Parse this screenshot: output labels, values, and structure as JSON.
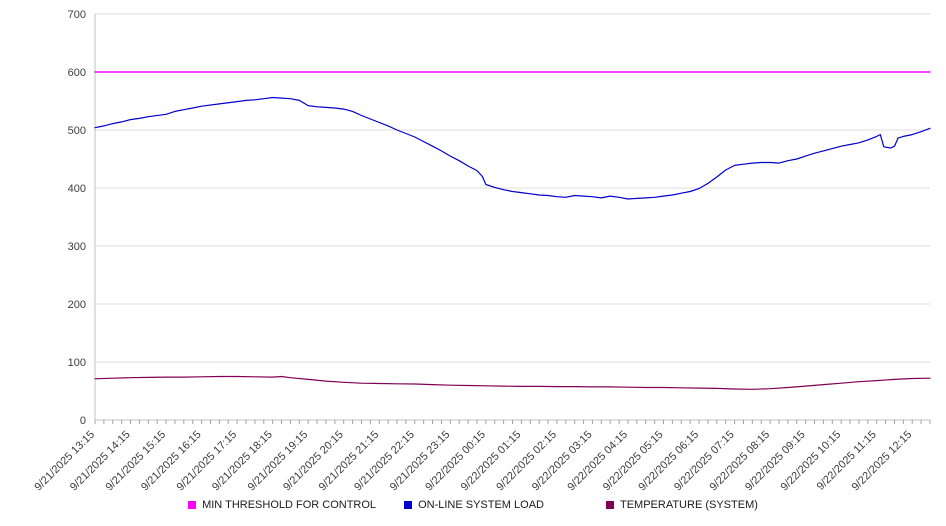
{
  "chart_data": {
    "type": "line",
    "title": "",
    "xlabel": "",
    "ylabel": "",
    "grid": true,
    "legend_position": "bottom",
    "x_axis": {
      "domain": [
        0,
        23.5
      ],
      "minor_tick_interval_hours": 0.25,
      "labels": [
        "9/21/2025 13:15",
        "9/21/2025 14:15",
        "9/21/2025 15:15",
        "9/21/2025 16:15",
        "9/21/2025 17:15",
        "9/21/2025 18:15",
        "9/21/2025 19:15",
        "9/21/2025 20:15",
        "9/21/2025 21:15",
        "9/21/2025 22:15",
        "9/21/2025 23:15",
        "9/22/2025 00:15",
        "9/22/2025 01:15",
        "9/22/2025 02:15",
        "9/22/2025 03:15",
        "9/22/2025 04:15",
        "9/22/2025 05:15",
        "9/22/2025 06:15",
        "9/22/2025 07:15",
        "9/22/2025 08:15",
        "9/22/2025 09:15",
        "9/22/2025 10:15",
        "9/22/2025 11:15",
        "9/22/2025 12:15"
      ]
    },
    "y_axis": {
      "min": 0,
      "max": 700,
      "tick_step": 100,
      "ticks": [
        0,
        100,
        200,
        300,
        400,
        500,
        600,
        700
      ]
    },
    "series": [
      {
        "name": "MIN THRESHOLD FOR CONTROL",
        "color": "#ff00ff",
        "width": 1.4,
        "points": [
          [
            0,
            600
          ],
          [
            23.5,
            600
          ]
        ]
      },
      {
        "name": "ON-LINE SYSTEM LOAD",
        "color": "#0000cc",
        "width": 1.2,
        "points": [
          [
            0,
            504
          ],
          [
            0.25,
            507
          ],
          [
            0.5,
            511
          ],
          [
            0.75,
            514
          ],
          [
            1,
            518
          ],
          [
            1.25,
            520
          ],
          [
            1.5,
            523
          ],
          [
            2,
            527
          ],
          [
            2.25,
            532
          ],
          [
            2.5,
            535
          ],
          [
            2.75,
            538
          ],
          [
            3,
            541
          ],
          [
            3.5,
            545
          ],
          [
            4,
            549
          ],
          [
            4.25,
            551
          ],
          [
            4.5,
            552
          ],
          [
            4.75,
            554
          ],
          [
            5,
            556
          ],
          [
            5.25,
            555
          ],
          [
            5.5,
            554
          ],
          [
            5.75,
            551
          ],
          [
            6,
            542
          ],
          [
            6.25,
            540
          ],
          [
            6.5,
            539
          ],
          [
            6.75,
            538
          ],
          [
            7,
            536
          ],
          [
            7.25,
            532
          ],
          [
            7.5,
            525
          ],
          [
            7.75,
            519
          ],
          [
            8,
            513
          ],
          [
            8.25,
            507
          ],
          [
            8.5,
            500
          ],
          [
            8.75,
            494
          ],
          [
            9,
            488
          ],
          [
            9.25,
            480
          ],
          [
            9.5,
            472
          ],
          [
            9.75,
            464
          ],
          [
            10,
            455
          ],
          [
            10.25,
            447
          ],
          [
            10.5,
            438
          ],
          [
            10.75,
            430
          ],
          [
            10.9,
            420
          ],
          [
            11,
            406
          ],
          [
            11.25,
            401
          ],
          [
            11.5,
            397
          ],
          [
            11.75,
            394
          ],
          [
            12,
            392
          ],
          [
            12.25,
            390
          ],
          [
            12.5,
            388
          ],
          [
            12.75,
            387
          ],
          [
            13,
            385
          ],
          [
            13.25,
            384
          ],
          [
            13.5,
            387
          ],
          [
            13.75,
            386
          ],
          [
            14,
            385
          ],
          [
            14.25,
            383
          ],
          [
            14.5,
            386
          ],
          [
            14.75,
            384
          ],
          [
            15,
            381
          ],
          [
            15.25,
            382
          ],
          [
            15.5,
            383
          ],
          [
            15.75,
            384
          ],
          [
            16,
            386
          ],
          [
            16.25,
            388
          ],
          [
            16.5,
            391
          ],
          [
            16.75,
            394
          ],
          [
            17,
            399
          ],
          [
            17.25,
            408
          ],
          [
            17.5,
            419
          ],
          [
            17.75,
            431
          ],
          [
            18,
            439
          ],
          [
            18.25,
            441
          ],
          [
            18.5,
            443
          ],
          [
            18.75,
            444
          ],
          [
            19,
            444
          ],
          [
            19.25,
            443
          ],
          [
            19.5,
            447
          ],
          [
            19.75,
            450
          ],
          [
            20,
            455
          ],
          [
            20.25,
            460
          ],
          [
            20.5,
            464
          ],
          [
            20.75,
            468
          ],
          [
            21,
            472
          ],
          [
            21.25,
            475
          ],
          [
            21.5,
            478
          ],
          [
            21.75,
            483
          ],
          [
            22,
            489
          ],
          [
            22.1,
            492
          ],
          [
            22.2,
            471
          ],
          [
            22.4,
            469
          ],
          [
            22.5,
            472
          ],
          [
            22.6,
            486
          ],
          [
            22.75,
            489
          ],
          [
            23,
            492
          ],
          [
            23.25,
            497
          ],
          [
            23.5,
            503
          ]
        ]
      },
      {
        "name": "TEMPERATURE (SYSTEM)",
        "color": "#800055",
        "width": 1.2,
        "points": [
          [
            0,
            71
          ],
          [
            0.5,
            72
          ],
          [
            1,
            73
          ],
          [
            1.5,
            73.5
          ],
          [
            2,
            74
          ],
          [
            2.5,
            74
          ],
          [
            3,
            74.5
          ],
          [
            3.5,
            75
          ],
          [
            4,
            75
          ],
          [
            4.5,
            74.5
          ],
          [
            5,
            74
          ],
          [
            5.25,
            75
          ],
          [
            5.5,
            73
          ],
          [
            6,
            70
          ],
          [
            6.5,
            67
          ],
          [
            7,
            65
          ],
          [
            7.5,
            63.5
          ],
          [
            8,
            63
          ],
          [
            8.5,
            62.5
          ],
          [
            9,
            62
          ],
          [
            9.5,
            61
          ],
          [
            10,
            60
          ],
          [
            10.5,
            59.5
          ],
          [
            11,
            59
          ],
          [
            11.5,
            58.5
          ],
          [
            12,
            58
          ],
          [
            12.5,
            58
          ],
          [
            13,
            57.5
          ],
          [
            13.5,
            57.5
          ],
          [
            14,
            57
          ],
          [
            14.5,
            57
          ],
          [
            15,
            56.5
          ],
          [
            15.5,
            56
          ],
          [
            16,
            56
          ],
          [
            16.5,
            55.5
          ],
          [
            17,
            55
          ],
          [
            17.5,
            54.5
          ],
          [
            18,
            53.5
          ],
          [
            18.5,
            53
          ],
          [
            19,
            54
          ],
          [
            19.5,
            56
          ],
          [
            20,
            58.5
          ],
          [
            20.5,
            61
          ],
          [
            21,
            63.5
          ],
          [
            21.5,
            66
          ],
          [
            22,
            68
          ],
          [
            22.5,
            70
          ],
          [
            23,
            71.5
          ],
          [
            23.5,
            72
          ]
        ]
      }
    ],
    "style": {
      "gridline_color": "#dcdcdc",
      "axis_color": "#c0c0c0",
      "tick_color": "#a0a0a0",
      "label_color": "#3c3c3c"
    }
  }
}
